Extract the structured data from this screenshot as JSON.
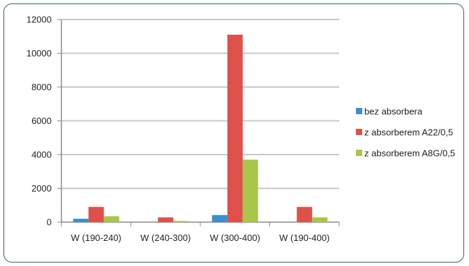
{
  "chart_data": {
    "type": "bar",
    "title": "",
    "xlabel": "",
    "ylabel": "",
    "categories": [
      "W (190-240)",
      "W (240-300)",
      "W (300-400)",
      "W (190-400)"
    ],
    "series": [
      {
        "name": "bez absorbera",
        "color": "#3a8fd1",
        "values": [
          200,
          0,
          420,
          0
        ]
      },
      {
        "name": "z absorberem A22/0,5",
        "color": "#e0504a",
        "values": [
          900,
          280,
          11100,
          900
        ]
      },
      {
        "name": "z absorberem A8G/0,5",
        "color": "#a7c64a",
        "values": [
          350,
          70,
          3700,
          280
        ]
      }
    ],
    "ylim": [
      0,
      12000
    ],
    "yticks": [
      0,
      2000,
      4000,
      6000,
      8000,
      10000,
      12000
    ],
    "grid": true,
    "legend_position": "right"
  }
}
